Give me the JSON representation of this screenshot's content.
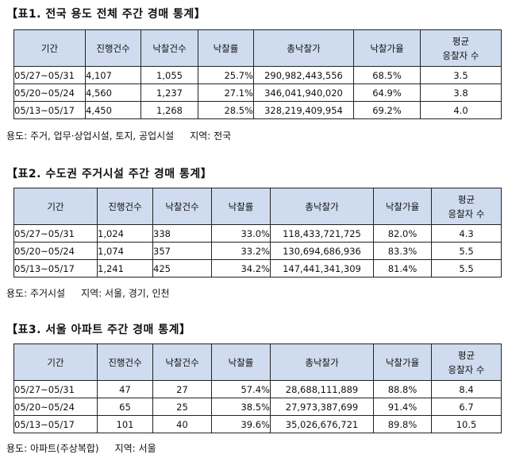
{
  "headers": {
    "period": "기간",
    "cases": "진행건수",
    "sold": "낙찰건수",
    "sale_rate": "낙찰률",
    "total_price": "총낙찰가",
    "price_rate": "낙찰가율",
    "bidders_line1": "평균",
    "bidders_line2": "응찰자 수"
  },
  "tables": [
    {
      "title": "【표1. 전국 용도 전체 주간 경매 통계】",
      "rows": [
        {
          "period": "05/27~05/31",
          "cases": "4,107",
          "sold": "1,055",
          "sale_rate": "25.7%",
          "total_price": "290,982,443,556",
          "price_rate": "68.5%",
          "bidders": "3.5"
        },
        {
          "period": "05/20~05/24",
          "cases": "4,560",
          "sold": "1,237",
          "sale_rate": "27.1%",
          "total_price": "346,041,940,020",
          "price_rate": "64.9%",
          "bidders": "3.8"
        },
        {
          "period": "05/13~05/17",
          "cases": "4,450",
          "sold": "1,268",
          "sale_rate": "28.5%",
          "total_price": "328,219,409,954",
          "price_rate": "69.2%",
          "bidders": "4.0"
        }
      ],
      "note_usage": "용도: 주거, 업무·상업시설, 토지, 공업시설",
      "note_region": "지역: 전국"
    },
    {
      "title": "【표2. 수도권 주거시설 주간 경매 통계】",
      "rows": [
        {
          "period": "05/27~05/31",
          "cases": "1,024",
          "sold": "338",
          "sale_rate": "33.0%",
          "total_price": "118,433,721,725",
          "price_rate": "82.0%",
          "bidders": "4.3"
        },
        {
          "period": "05/20~05/24",
          "cases": "1,074",
          "sold": "357",
          "sale_rate": "33.2%",
          "total_price": "130,694,686,936",
          "price_rate": "83.3%",
          "bidders": "5.5"
        },
        {
          "period": "05/13~05/17",
          "cases": "1,241",
          "sold": "425",
          "sale_rate": "34.2%",
          "total_price": "147,441,341,309",
          "price_rate": "81.4%",
          "bidders": "5.5"
        }
      ],
      "note_usage": "용도: 주거시설",
      "note_region": "지역: 서울, 경기, 인천"
    },
    {
      "title": "【표3. 서울 아파트 주간 경매 통계】",
      "rows": [
        {
          "period": "05/27~05/31",
          "cases": "47",
          "sold": "27",
          "sale_rate": "57.4%",
          "total_price": "28,688,111,889",
          "price_rate": "88.8%",
          "bidders": "8.4"
        },
        {
          "period": "05/20~05/24",
          "cases": "65",
          "sold": "25",
          "sale_rate": "38.5%",
          "total_price": "27,973,387,699",
          "price_rate": "91.4%",
          "bidders": "6.7"
        },
        {
          "period": "05/13~05/17",
          "cases": "101",
          "sold": "40",
          "sale_rate": "39.6%",
          "total_price": "35,026,676,721",
          "price_rate": "89.8%",
          "bidders": "10.5"
        }
      ],
      "note_usage": "용도: 아파트(주상복합)",
      "note_region": "지역: 서울"
    }
  ]
}
